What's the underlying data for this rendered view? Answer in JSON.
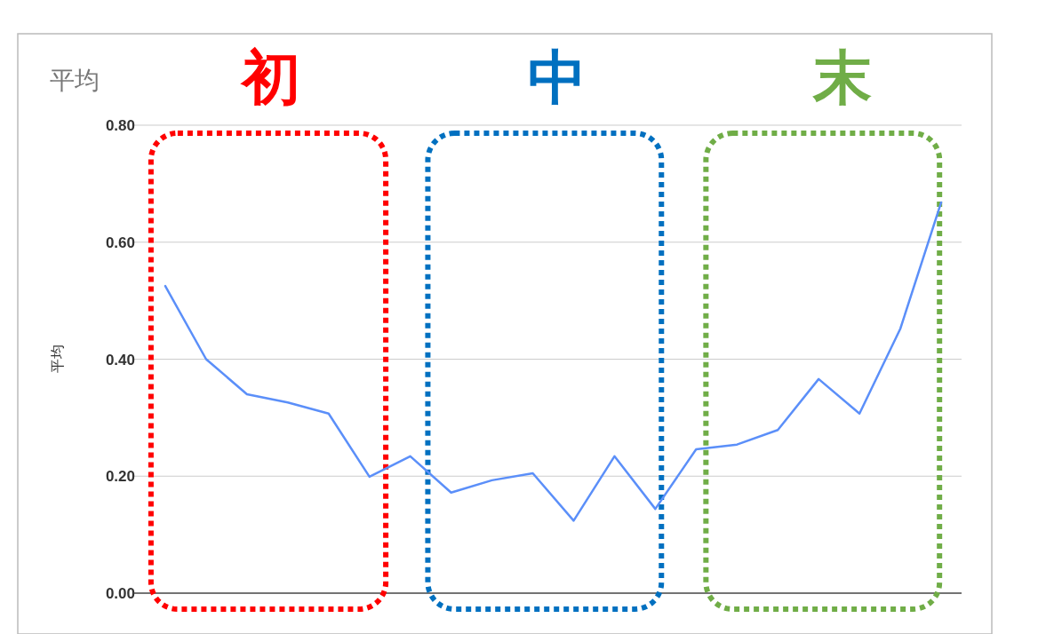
{
  "chart_data": {
    "type": "line",
    "title": "平均",
    "ylabel": "平均",
    "categories": [
      null,
      null,
      null,
      null,
      null,
      null,
      null,
      null,
      null,
      null,
      null,
      null,
      null,
      null,
      null,
      null,
      null,
      null,
      null,
      null
    ],
    "series": [
      {
        "color": "#5b8ff9",
        "values": [
          0.525,
          0.4,
          0.34,
          0.326,
          0.307,
          0.199,
          0.234,
          0.172,
          0.193,
          0.205,
          0.124,
          0.234,
          0.144,
          0.246,
          0.254,
          0.279,
          0.366,
          0.307,
          0.452,
          0.668
        ]
      }
    ],
    "ylim": [
      0,
      0.8
    ],
    "yticks": [
      {
        "value": 0,
        "label": "0.00"
      },
      {
        "value": 0.2,
        "label": "0.20"
      },
      {
        "value": 0.4,
        "label": "0.40"
      },
      {
        "value": 0.6,
        "label": "0.60"
      },
      {
        "value": 0.8,
        "label": "0.80"
      }
    ],
    "grid": "y",
    "marker": "none",
    "line_style": "solid",
    "annotations": [
      "初",
      "中",
      "末"
    ]
  }
}
